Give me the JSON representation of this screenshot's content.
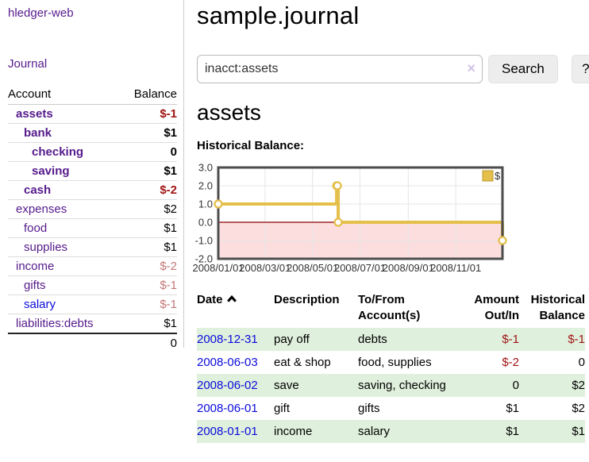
{
  "app": {
    "brand": "hledger-web",
    "nav": {
      "journal": "Journal"
    }
  },
  "sidebar": {
    "header": {
      "account": "Account",
      "balance": "Balance"
    },
    "accounts": [
      {
        "name": "assets",
        "balance": "$-1"
      },
      {
        "name": "bank",
        "balance": "$1"
      },
      {
        "name": "checking",
        "balance": "0"
      },
      {
        "name": "saving",
        "balance": "$1"
      },
      {
        "name": "cash",
        "balance": "$-2"
      },
      {
        "name": "expenses",
        "balance": "$2"
      },
      {
        "name": "food",
        "balance": "$1"
      },
      {
        "name": "supplies",
        "balance": "$1"
      },
      {
        "name": "income",
        "balance": "$-2"
      },
      {
        "name": "gifts",
        "balance": "$-1"
      },
      {
        "name": "salary",
        "balance": "$-1"
      },
      {
        "name": "liabilities:debts",
        "balance": "$1"
      }
    ],
    "total": "0"
  },
  "main": {
    "title": "sample.journal",
    "search": {
      "value": "inacct:assets",
      "clear_icon": "×",
      "button": "Search",
      "help": "?"
    },
    "account_heading": "assets"
  },
  "chart_data": {
    "type": "line",
    "title": "Historical Balance:",
    "step": true,
    "xlim": [
      "2008-01-01",
      "2008-12-31"
    ],
    "ylim": [
      -2,
      3
    ],
    "y_ticks": [
      3.0,
      2.0,
      1.0,
      0.0,
      -1.0,
      -2.0
    ],
    "x_tick_labels": [
      "2008/01/01",
      "2008/03/01",
      "2008/05/01",
      "2008/07/01",
      "2008/09/01",
      "2008/11/01"
    ],
    "series": [
      {
        "name": "$",
        "color": "#e5bf4b",
        "points": [
          [
            "2008-01-01",
            1
          ],
          [
            "2008-06-01",
            2
          ],
          [
            "2008-06-02",
            2
          ],
          [
            "2008-06-03",
            0
          ],
          [
            "2008-12-31",
            -1
          ]
        ]
      }
    ],
    "negative_region_fill": "#fcdede",
    "zero_line_color": "#8b0000",
    "grid": true,
    "legend_position": "top-right"
  },
  "register": {
    "headers": {
      "date": "Date",
      "description": "Description",
      "account": "To/From Account(s)",
      "amount": "Amount Out/In",
      "balance": "Historical Balance"
    },
    "rows": [
      {
        "date": "2008-12-31",
        "description": "pay off",
        "account": "debts",
        "amount": "$-1",
        "balance": "$-1"
      },
      {
        "date": "2008-06-03",
        "description": "eat & shop",
        "account": "food, supplies",
        "amount": "$-2",
        "balance": "0"
      },
      {
        "date": "2008-06-02",
        "description": "save",
        "account": "saving, checking",
        "amount": "0",
        "balance": "$2"
      },
      {
        "date": "2008-06-01",
        "description": "gift",
        "account": "gifts",
        "amount": "$1",
        "balance": "$2"
      },
      {
        "date": "2008-01-01",
        "description": "income",
        "account": "salary",
        "amount": "$1",
        "balance": "$1"
      }
    ]
  }
}
